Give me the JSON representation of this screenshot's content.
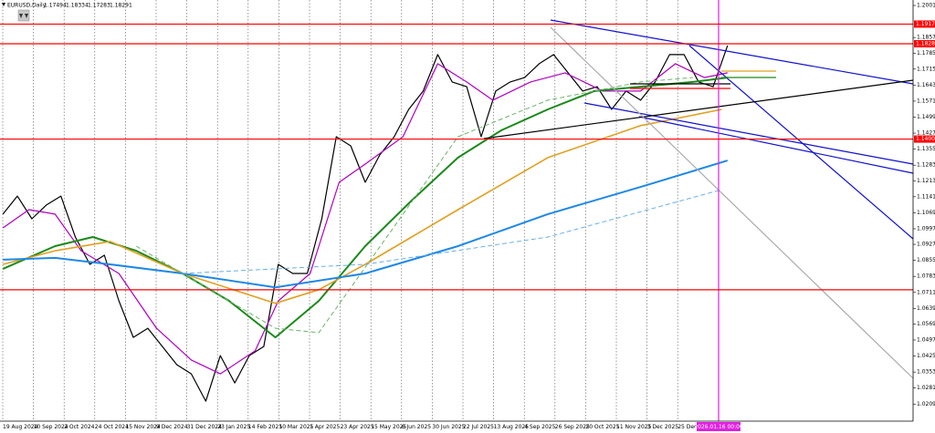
{
  "chart_data": {
    "type": "line",
    "header": {
      "symbol": "EURUSD,Daily",
      "open": 1.17494,
      "high": 1.18334,
      "low": 1.17283,
      "close": 1.18291
    },
    "categories": [
      "19 Aug 2024",
      "10 Sep 2024",
      "2 Oct 2024",
      "24 Oct 2024",
      "15 Nov 2024",
      "9 Dec 2024",
      "31 Dec 2024",
      "23 Jan 2025",
      "14 Feb 2025",
      "10 Mar 2025",
      "1 Apr 2025",
      "23 Apr 2025",
      "15 May 2025",
      "6 Jun 2025",
      "30 Jun 2025",
      "22 Jul 2025",
      "13 Aug 2025",
      "4 Sep 2025",
      "26 Sep 2025",
      "20 Oct 2025",
      "11 Nov 2025",
      "3 Dec 2025",
      "25 Dec 2025"
    ],
    "cursor_label": "2026.01.16 00:00",
    "xlim": [
      -1,
      314
    ],
    "ylim": [
      1.01322,
      1.20256
    ],
    "yticks": [
      {
        "value": 1.2001,
        "label": "1.20010"
      },
      {
        "value": 1.1857,
        "label": "1.18570"
      },
      {
        "value": 1.1785,
        "label": "1.17850"
      },
      {
        "value": 1.1715,
        "label": "1.17150"
      },
      {
        "value": 1.1643,
        "label": "1.16430"
      },
      {
        "value": 1.1571,
        "label": "1.15710"
      },
      {
        "value": 1.1499,
        "label": "1.14990"
      },
      {
        "value": 1.1427,
        "label": "1.14270"
      },
      {
        "value": 1.1355,
        "label": "1.13550"
      },
      {
        "value": 1.1283,
        "label": "1.12830"
      },
      {
        "value": 1.1213,
        "label": "1.12130"
      },
      1.1141,
      {
        "value": 1.1069,
        "label": "1.10690"
      },
      {
        "value": 1.0997,
        "label": "1.09970"
      },
      {
        "value": 1.0927,
        "label": "1.09270"
      },
      {
        "value": 1.0855,
        "label": "1.08550"
      },
      {
        "value": 1.0783,
        "label": "1.07830"
      },
      {
        "value": 1.0711,
        "label": "1.07110"
      },
      {
        "value": 1.0639,
        "label": "1.06390"
      },
      {
        "value": 1.0569,
        "label": "1.05690"
      },
      {
        "value": 1.0497,
        "label": "1.04970"
      },
      {
        "value": 1.0425,
        "label": "1.04250"
      },
      {
        "value": 1.0353,
        "label": "1.03530"
      },
      {
        "value": 1.0281,
        "label": "1.02810"
      },
      {
        "value": 1.0209,
        "label": "1.02090"
      }
    ],
    "hlines": [
      1.19173,
      1.18289,
      1.14004,
      1.0723
    ],
    "hline_labels": [
      "1.19173",
      "1.18289",
      "1.14004",
      null
    ],
    "hline_color": "#ff0000",
    "series": [
      {
        "name": "EURUSD",
        "color": "#000000",
        "width": 1.2,
        "dash": false,
        "x": [
          0,
          5,
          10,
          15,
          20,
          25,
          30,
          35,
          40,
          45,
          50,
          55,
          60,
          65,
          70,
          75,
          80,
          85,
          90,
          95,
          100,
          105,
          110,
          115,
          120,
          125,
          130,
          135,
          140,
          145,
          150,
          155,
          160,
          165,
          170,
          175,
          180,
          185,
          190,
          195,
          200,
          205,
          210,
          215,
          220,
          225,
          230,
          235,
          240,
          245,
          250
        ],
        "values": [
          1.1063,
          1.1144,
          1.1042,
          1.1104,
          1.1144,
          1.096,
          1.0837,
          1.0878,
          1.0673,
          1.0509,
          1.055,
          1.0468,
          1.0386,
          1.0345,
          1.0222,
          1.0427,
          1.0304,
          1.0427,
          1.0468,
          1.0837,
          1.0796,
          1.0796,
          1.1042,
          1.1411,
          1.137,
          1.1206,
          1.1329,
          1.1411,
          1.1534,
          1.1616,
          1.178,
          1.1657,
          1.1636,
          1.1411,
          1.1616,
          1.1657,
          1.1677,
          1.1739,
          1.178,
          1.1698,
          1.1616,
          1.1636,
          1.1534,
          1.1616,
          1.1575,
          1.1657,
          1.178,
          1.178,
          1.1657,
          1.1636,
          1.1821
        ]
      },
      {
        "name": "MA fast",
        "color": "#b000c0",
        "width": 1.2,
        "dash": false,
        "x": [
          0,
          9,
          18,
          27,
          40,
          53,
          65,
          75,
          87,
          95,
          106,
          116,
          125,
          138,
          150,
          160,
          169,
          182,
          194,
          207,
          220,
          232,
          242,
          250
        ],
        "values": [
          1.1001,
          1.1083,
          1.1063,
          1.0898,
          1.0796,
          1.055,
          1.0407,
          1.0345,
          1.0448,
          1.0673,
          1.0796,
          1.1206,
          1.1288,
          1.1411,
          1.1739,
          1.1657,
          1.1575,
          1.1657,
          1.1698,
          1.1616,
          1.1616,
          1.1739,
          1.1677,
          1.1698
        ]
      },
      {
        "name": "MA green",
        "color": "#1a8a1a",
        "width": 2,
        "dash": false,
        "x": [
          0,
          18,
          31,
          46,
          62,
          78,
          94,
          109,
          125,
          141,
          157,
          172,
          188,
          204,
          220,
          238,
          250
        ],
        "values": [
          1.0817,
          1.0919,
          1.096,
          1.0898,
          1.0796,
          1.0673,
          1.0509,
          1.0673,
          1.0919,
          1.1124,
          1.1317,
          1.144,
          1.1534,
          1.1616,
          1.1636,
          1.1657,
          1.1677
        ]
      },
      {
        "name": "MA orange",
        "color": "#e0a020",
        "width": 1.6,
        "dash": false,
        "x": [
          0,
          18,
          37,
          62,
          94,
          109,
          125,
          141,
          157,
          188,
          220,
          248
        ],
        "values": [
          1.0837,
          1.0898,
          1.094,
          1.0796,
          1.0662,
          1.0723,
          1.0837,
          1.096,
          1.1083,
          1.1317,
          1.1461,
          1.1534
        ]
      },
      {
        "name": "MA blue",
        "color": "#1e88e5",
        "width": 2,
        "dash": false,
        "x": [
          0,
          18,
          37,
          62,
          94,
          125,
          157,
          188,
          220,
          250
        ],
        "values": [
          1.0858,
          1.0866,
          1.0837,
          1.0796,
          1.0734,
          1.0796,
          1.0919,
          1.1063,
          1.1185,
          1.1304
        ]
      },
      {
        "name": "MA green dashed",
        "color": "#6ab46a",
        "width": 1,
        "dash": true,
        "x": [
          46,
          94,
          109,
          157,
          188,
          220,
          238
        ],
        "values": [
          1.0919,
          1.055,
          1.053,
          1.1411,
          1.1575,
          1.1657,
          1.1677
        ]
      },
      {
        "name": "MA blue dashed",
        "color": "#6aaee8",
        "width": 1,
        "dash": true,
        "x": [
          62,
          125,
          188,
          248
        ],
        "values": [
          1.0796,
          1.0837,
          1.096,
          1.1173
        ]
      }
    ]
  }
}
